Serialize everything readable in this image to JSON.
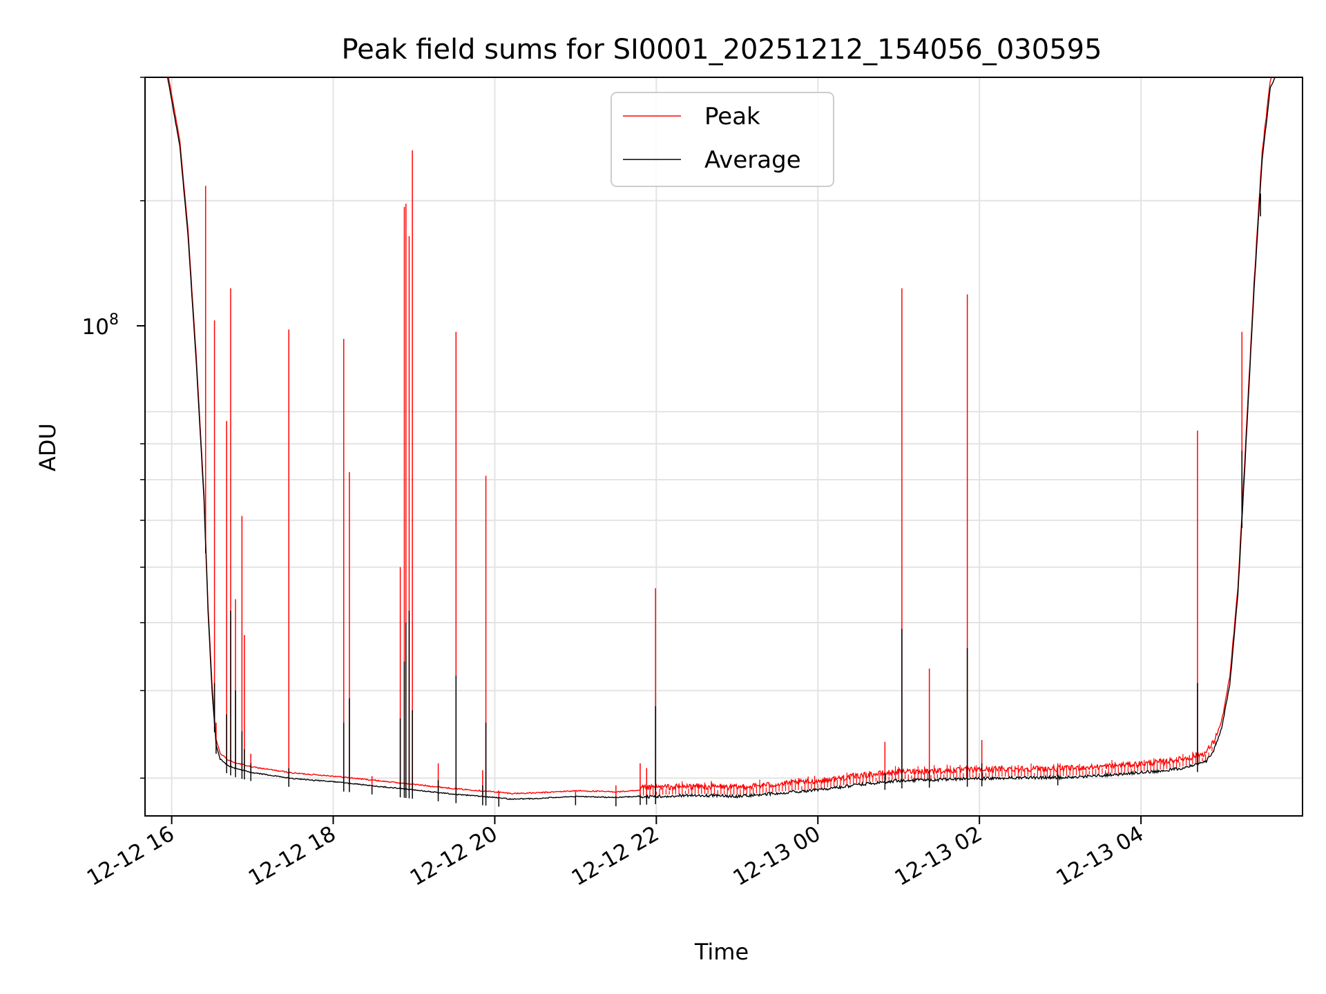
{
  "chart_data": {
    "type": "line",
    "title": "Peak field sums for SI0001_20251212_154056_030595",
    "xlabel": "Time",
    "ylabel": "ADU",
    "yscale": "log",
    "ylim": [
      26500000,
      300000000
    ],
    "y_tick_label": {
      "base": "10",
      "exp": "8",
      "value": 100000000
    },
    "x_range_hours": [
      -0.33,
      14.0
    ],
    "x_ticks": [
      {
        "hour": 0,
        "label": "12-12 16"
      },
      {
        "hour": 2,
        "label": "12-12 18"
      },
      {
        "hour": 4,
        "label": "12-12 20"
      },
      {
        "hour": 6,
        "label": "12-12 22"
      },
      {
        "hour": 8,
        "label": "12-13 00"
      },
      {
        "hour": 10,
        "label": "12-13 02"
      },
      {
        "hour": 12,
        "label": "12-13 04"
      }
    ],
    "grid": true,
    "legend": {
      "position": "top-center",
      "entries": [
        {
          "name": "Peak",
          "color": "#ff0000"
        },
        {
          "name": "Average",
          "color": "#000000"
        }
      ]
    },
    "series": [
      {
        "name": "Average",
        "color": "#000000",
        "unit_hours_from": "12-12 16:00",
        "points": [
          [
            -0.33,
            310000000
          ],
          [
            -0.05,
            300000000
          ],
          [
            0.1,
            240000000
          ],
          [
            0.2,
            180000000
          ],
          [
            0.3,
            120000000
          ],
          [
            0.4,
            75000000
          ],
          [
            0.45,
            52000000
          ],
          [
            0.5,
            40000000
          ],
          [
            0.55,
            33500000
          ],
          [
            0.6,
            32000000
          ],
          [
            0.7,
            31300000
          ],
          [
            0.8,
            31000000
          ],
          [
            1.0,
            30600000
          ],
          [
            1.5,
            30000000
          ],
          [
            2.0,
            29700000
          ],
          [
            2.5,
            29300000
          ],
          [
            3.0,
            28900000
          ],
          [
            3.5,
            28500000
          ],
          [
            4.0,
            28200000
          ],
          [
            4.2,
            28050000
          ],
          [
            4.5,
            28100000
          ],
          [
            5.0,
            28300000
          ],
          [
            5.5,
            28200000
          ],
          [
            6.0,
            28400000
          ],
          [
            6.5,
            28500000
          ],
          [
            7.0,
            28400000
          ],
          [
            7.5,
            28700000
          ],
          [
            8.0,
            29000000
          ],
          [
            8.5,
            29500000
          ],
          [
            9.0,
            29900000
          ],
          [
            9.5,
            30000000
          ],
          [
            10.0,
            30100000
          ],
          [
            10.5,
            30200000
          ],
          [
            11.0,
            30200000
          ],
          [
            11.5,
            30400000
          ],
          [
            12.0,
            30700000
          ],
          [
            12.3,
            30900000
          ],
          [
            12.6,
            31300000
          ],
          [
            12.8,
            31800000
          ],
          [
            12.9,
            33000000
          ],
          [
            13.0,
            35500000
          ],
          [
            13.1,
            41000000
          ],
          [
            13.2,
            55000000
          ],
          [
            13.3,
            90000000
          ],
          [
            13.4,
            150000000
          ],
          [
            13.5,
            230000000
          ],
          [
            13.6,
            290000000
          ],
          [
            13.7,
            310000000
          ],
          [
            14.0,
            310000000
          ]
        ]
      },
      {
        "name": "Peak",
        "color": "#ff0000",
        "unit_hours_from": "12-12 16:00",
        "baseline_offset_ratio": 1.015,
        "spikes": [
          {
            "hour": 0.42,
            "peak": 210000000,
            "avg": 65000000
          },
          {
            "hour": 0.53,
            "peak": 135000000,
            "avg": 41000000
          },
          {
            "hour": 0.55,
            "peak": 36000000,
            "avg": 34000000
          },
          {
            "hour": 0.68,
            "peak": 97000000,
            "avg": 37000000
          },
          {
            "hour": 0.73,
            "peak": 150000000,
            "avg": 52000000
          },
          {
            "hour": 0.79,
            "peak": 54000000,
            "avg": 40000000
          },
          {
            "hour": 0.87,
            "peak": 71000000,
            "avg": 35000000
          },
          {
            "hour": 0.9,
            "peak": 48000000,
            "avg": 33000000
          },
          {
            "hour": 0.98,
            "peak": 32500000,
            "avg": 31500000
          },
          {
            "hour": 1.45,
            "peak": 131000000,
            "avg": 31000000
          },
          {
            "hour": 2.13,
            "peak": 127000000,
            "avg": 36000000
          },
          {
            "hour": 2.2,
            "peak": 82000000,
            "avg": 39000000
          },
          {
            "hour": 2.48,
            "peak": 30200000,
            "avg": 29300000
          },
          {
            "hour": 2.83,
            "peak": 60000000,
            "avg": 36500000
          },
          {
            "hour": 2.88,
            "peak": 196000000,
            "avg": 44000000
          },
          {
            "hour": 2.9,
            "peak": 198000000,
            "avg": 50000000
          },
          {
            "hour": 2.94,
            "peak": 178000000,
            "avg": 52000000
          },
          {
            "hour": 2.98,
            "peak": 236000000,
            "avg": 37500000
          },
          {
            "hour": 3.3,
            "peak": 31500000,
            "avg": 29800000
          },
          {
            "hour": 3.52,
            "peak": 130000000,
            "avg": 42000000
          },
          {
            "hour": 3.85,
            "peak": 30800000,
            "avg": 29300000
          },
          {
            "hour": 3.89,
            "peak": 81000000,
            "avg": 36000000
          },
          {
            "hour": 4.05,
            "peak": 28800000,
            "avg": 28200000
          },
          {
            "hour": 5.0,
            "peak": 28800000,
            "avg": 28300000
          },
          {
            "hour": 5.5,
            "peak": 29300000,
            "avg": 28200000
          },
          {
            "hour": 5.8,
            "peak": 31500000,
            "avg": 28400000
          },
          {
            "hour": 5.88,
            "peak": 31000000,
            "avg": 28400000
          },
          {
            "hour": 5.99,
            "peak": 56000000,
            "avg": 38000000
          },
          {
            "hour": 8.83,
            "peak": 33800000,
            "avg": 30500000
          },
          {
            "hour": 9.04,
            "peak": 150000000,
            "avg": 49000000
          },
          {
            "hour": 9.38,
            "peak": 43000000,
            "avg": 30800000
          },
          {
            "hour": 9.85,
            "peak": 147000000,
            "avg": 46000000
          },
          {
            "hour": 10.03,
            "peak": 34000000,
            "avg": 31500000
          },
          {
            "hour": 10.97,
            "peak": 31500000,
            "avg": 30400000
          },
          {
            "hour": 12.7,
            "peak": 94000000,
            "avg": 41000000
          },
          {
            "hour": 13.25,
            "peak": 130000000,
            "avg": 88000000
          },
          {
            "hour": 13.48,
            "peak": 213000000,
            "avg": 190000000
          }
        ]
      }
    ]
  }
}
